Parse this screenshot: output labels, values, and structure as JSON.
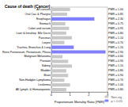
{
  "chart_data": {
    "type": "bar",
    "orientation": "horizontal",
    "title": "Cause of death (Cancer)",
    "x_label": "Proportionate Mortality Ratio (PMR)",
    "categories": [
      "All cancers",
      "Oral Cav. & Pharynx",
      "Esophagus",
      "Stomach",
      "Colon and rectum",
      "Liver & Intrahep. Bile Ducts",
      "Pancreas",
      "Larynx",
      "Trachea, Bronchus & Lung",
      "Retro Peritoneum, Peritoneum, Pleura",
      "Malignant Melanoma",
      "Prostate",
      "Kidney",
      "Bladder",
      "Brain",
      "Non-Hodgkin Lymphoma",
      "Leukemia",
      "All Lymph. & Hematopoietic"
    ],
    "series": [
      {
        "name": "Non-sig",
        "color": "#c8c8c8",
        "values": [
          1.0,
          0.85,
          null,
          0.75,
          0.95,
          0.8,
          1.1,
          0.7,
          null,
          null,
          0.6,
          0.9,
          1.1,
          0.8,
          0.9,
          0.7,
          1.0,
          0.8
        ],
        "value_labels": [
          "PMR = 1.00",
          "PMR = 0.85",
          null,
          "PMR = 0.75",
          "PMR = 0.95",
          "PMR = 0.80",
          "PMR = 1.10",
          "PMR = 0.70",
          null,
          null,
          "PMR = 0.60",
          "PMR = 0.90",
          "PMR = 1.10",
          "PMR = 0.80",
          "PMR = 0.90",
          "PMR = 0.70",
          "PMR = 1.00",
          "PMR = 0.80"
        ]
      },
      {
        "name": "p < 0.05",
        "color": "#8080ff",
        "values": [
          null,
          null,
          2.3,
          null,
          null,
          null,
          null,
          null,
          1.2,
          2.9,
          null,
          null,
          null,
          null,
          null,
          null,
          null,
          null
        ],
        "value_labels": [
          null,
          null,
          "PMR = 2.30",
          null,
          null,
          null,
          null,
          null,
          "PMR = 1.20",
          "PMR = 2.90",
          null,
          null,
          null,
          null,
          null,
          null,
          null,
          null
        ]
      }
    ],
    "xlim": [
      0,
      3
    ],
    "xticks": [
      0,
      1,
      2,
      3
    ],
    "legend": "bottom-right",
    "grid": false
  }
}
